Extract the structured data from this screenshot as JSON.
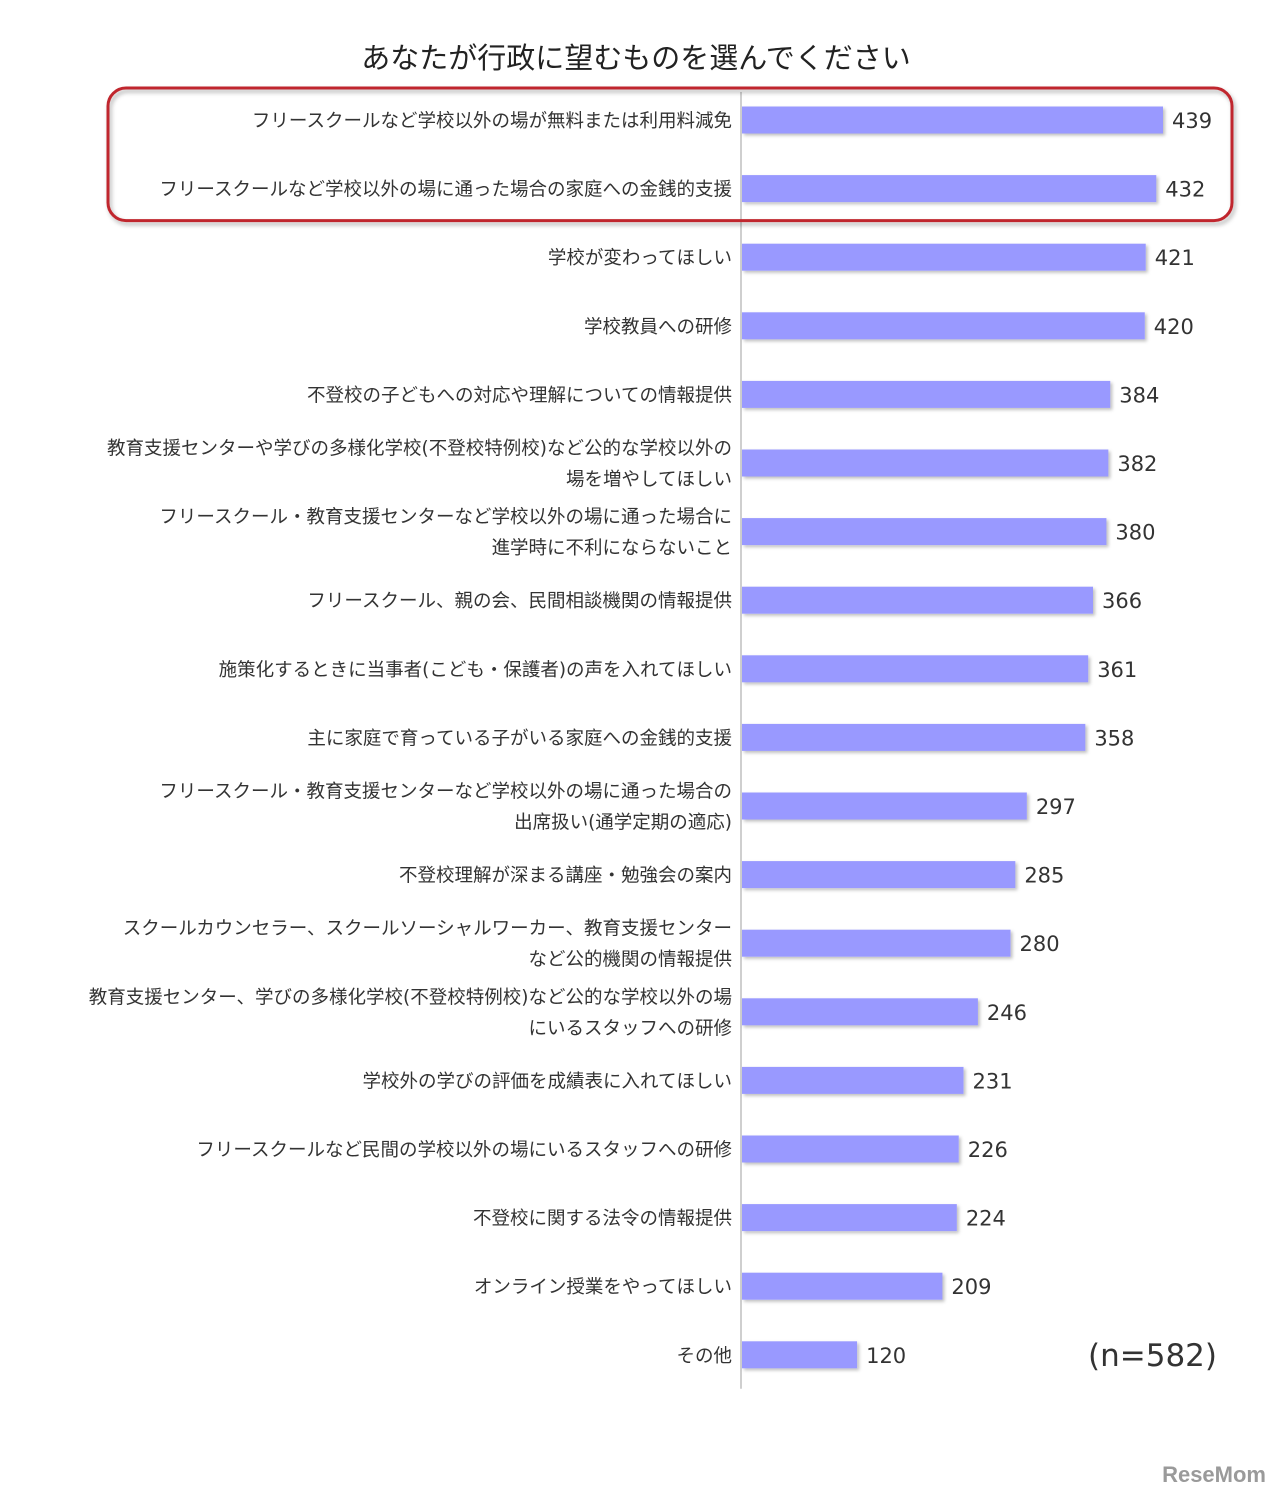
{
  "chart_data": {
    "type": "bar",
    "orientation": "horizontal",
    "title": "あなたが行政に望むものを選んでください",
    "note": "(n=582)",
    "categories": [
      [
        "フリースクールなど学校以外の場が無料または利用料減免"
      ],
      [
        "フリースクールなど学校以外の場に通った場合の家庭への金銭的支援"
      ],
      [
        "学校が変わってほしい"
      ],
      [
        "学校教員への研修"
      ],
      [
        "不登校の子どもへの対応や理解についての情報提供"
      ],
      [
        "教育支援センターや学びの多様化学校(不登校特例校)など公的な学校以外の",
        "場を増やしてほしい"
      ],
      [
        "フリースクール・教育支援センターなど学校以外の場に通った場合に",
        "進学時に不利にならないこと"
      ],
      [
        "フリースクール、親の会、民間相談機関の情報提供"
      ],
      [
        "施策化するときに当事者(こども・保護者)の声を入れてほしい"
      ],
      [
        "主に家庭で育っている子がいる家庭への金銭的支援"
      ],
      [
        "フリースクール・教育支援センターなど学校以外の場に通った場合の",
        "出席扱い(通学定期の適応)"
      ],
      [
        "不登校理解が深まる講座・勉強会の案内"
      ],
      [
        "スクールカウンセラー、スクールソーシャルワーカー、教育支援センター",
        "など公的機関の情報提供"
      ],
      [
        "教育支援センター、学びの多様化学校(不登校特例校)など公的な学校以外の場",
        "にいるスタッフへの研修"
      ],
      [
        "学校外の学びの評価を成績表に入れてほしい"
      ],
      [
        "フリースクールなど民間の学校以外の場にいるスタッフへの研修"
      ],
      [
        "不登校に関する法令の情報提供"
      ],
      [
        "オンライン授業をやってほしい"
      ],
      [
        "その他"
      ]
    ],
    "values": [
      439,
      432,
      421,
      420,
      384,
      382,
      380,
      366,
      361,
      358,
      297,
      285,
      280,
      246,
      231,
      226,
      224,
      209,
      120
    ],
    "xlim": [
      0,
      439
    ],
    "grid": false,
    "highlight_indices": [
      0,
      1
    ],
    "colors": {
      "bar": "#9999ff",
      "highlight_box": "#c0282d",
      "axis": "#bfbfbf",
      "text": "#333333"
    }
  },
  "watermark": "ReseMom"
}
